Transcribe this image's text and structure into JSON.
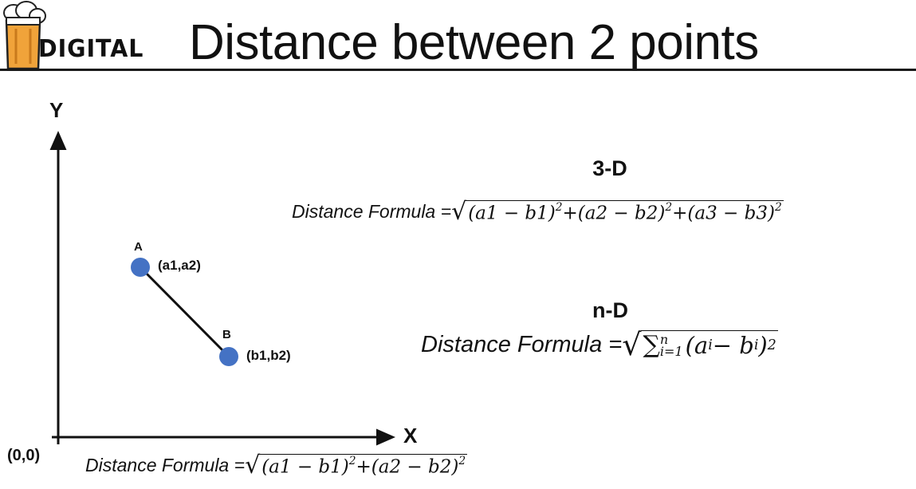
{
  "header": {
    "logo_text": "DIGITAL",
    "title": "Distance between 2 points"
  },
  "diagram": {
    "y_axis_label": "Y",
    "x_axis_label": "X",
    "origin_label": "(0,0)",
    "point_a": {
      "name": "A",
      "coords": "(a1,a2)"
    },
    "point_b": {
      "name": "B",
      "coords": "(b1,b2)"
    },
    "point_color": "#4472c4"
  },
  "formulas": {
    "two_d": {
      "label": "Distance Formula = ",
      "expression_a": "(a1 − b1)",
      "expression_b": "+(a2 − b2)",
      "exponent": "2"
    },
    "three_d": {
      "heading": "3-D",
      "label": "Distance Formula = ",
      "expression_a": "(a1 − b1)",
      "expression_b": "+(a2 − b2)",
      "expression_c": "+(a3 − b3)",
      "exponent": "2"
    },
    "n_d": {
      "heading": "n-D",
      "label": "Distance Formula = ",
      "sum_symbol": "∑",
      "sum_upper": "n",
      "sum_lower": "i=1",
      "expression": "(a",
      "sub_a": "i",
      "minus_b": " − b",
      "sub_b": "i",
      "close": ")",
      "exponent": "2"
    }
  }
}
